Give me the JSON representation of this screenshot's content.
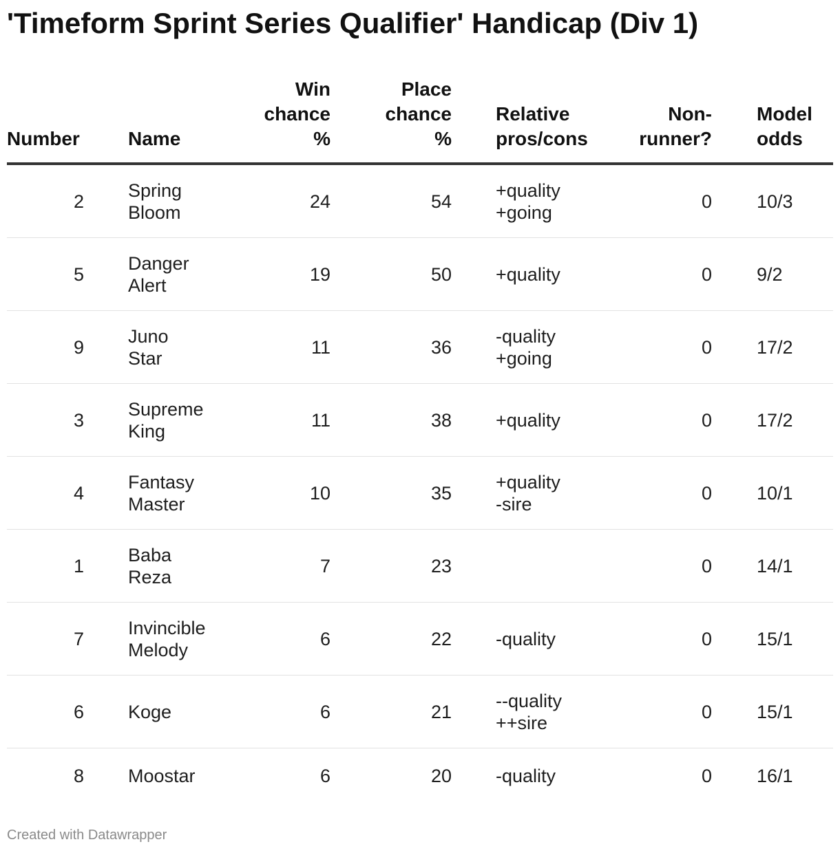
{
  "title": "'Timeform Sprint Series Qualifier' Handicap (Div 1)",
  "footer": "Created with Datawrapper",
  "chart_data": {
    "type": "table",
    "title": "'Timeform Sprint Series Qualifier' Handicap (Div 1)",
    "columns": [
      {
        "key": "number",
        "label": "Number"
      },
      {
        "key": "name",
        "label": "Name"
      },
      {
        "key": "win",
        "label": "Win chance %"
      },
      {
        "key": "place",
        "label": "Place chance %"
      },
      {
        "key": "pros",
        "label": "Relative pros/cons"
      },
      {
        "key": "nonrunner",
        "label": "Non-runner?"
      },
      {
        "key": "odds",
        "label": "Model odds"
      }
    ],
    "rows": [
      {
        "number": 2,
        "name": "Spring Bloom",
        "win": 24,
        "place": 54,
        "pros": "+quality +going",
        "nonrunner": 0,
        "odds": "10/3"
      },
      {
        "number": 5,
        "name": "Danger Alert",
        "win": 19,
        "place": 50,
        "pros": "+quality",
        "nonrunner": 0,
        "odds": "9/2"
      },
      {
        "number": 9,
        "name": "Juno Star",
        "win": 11,
        "place": 36,
        "pros": "-quality +going",
        "nonrunner": 0,
        "odds": "17/2"
      },
      {
        "number": 3,
        "name": "Supreme King",
        "win": 11,
        "place": 38,
        "pros": "+quality",
        "nonrunner": 0,
        "odds": "17/2"
      },
      {
        "number": 4,
        "name": "Fantasy Master",
        "win": 10,
        "place": 35,
        "pros": "+quality -sire",
        "nonrunner": 0,
        "odds": "10/1"
      },
      {
        "number": 1,
        "name": "Baba Reza",
        "win": 7,
        "place": 23,
        "pros": "",
        "nonrunner": 0,
        "odds": "14/1"
      },
      {
        "number": 7,
        "name": "Invincible Melody",
        "win": 6,
        "place": 22,
        "pros": "-quality",
        "nonrunner": 0,
        "odds": "15/1"
      },
      {
        "number": 6,
        "name": "Koge",
        "win": 6,
        "place": 21,
        "pros": "--quality ++sire",
        "nonrunner": 0,
        "odds": "15/1"
      },
      {
        "number": 8,
        "name": "Moostar",
        "win": 6,
        "place": 20,
        "pros": "-quality",
        "nonrunner": 0,
        "odds": "16/1"
      }
    ]
  }
}
